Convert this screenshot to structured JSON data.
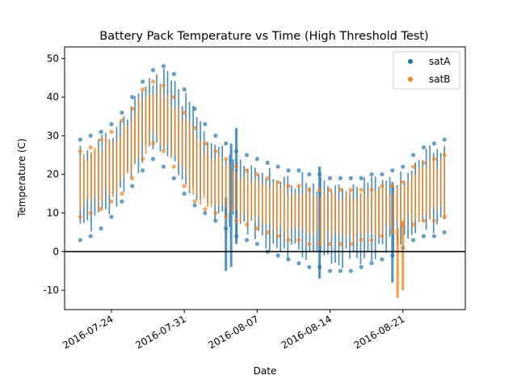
{
  "chart_data": {
    "type": "scatter",
    "title": "Battery Pack Temperature vs Time (High Threshold Test)",
    "xlabel": "Date",
    "ylabel": "Temperature (C)",
    "x_range": [
      "2016-07-19T12:00",
      "2016-08-27T00:00"
    ],
    "ylim": [
      -15,
      53
    ],
    "x_ticks": [
      "2016-07-24",
      "2016-07-31",
      "2016-08-07",
      "2016-08-14",
      "2016-08-21"
    ],
    "y_ticks": [
      -10,
      0,
      10,
      20,
      30,
      40,
      50
    ],
    "reference_line": {
      "y": 0,
      "color": "#000000"
    },
    "grid": false,
    "legend_position": "top-right",
    "series": [
      {
        "name": "satA",
        "color": "#1f77b4",
        "envelope": {
          "dates": [
            "2016-07-21",
            "2016-07-22",
            "2016-07-23",
            "2016-07-24",
            "2016-07-25",
            "2016-07-26",
            "2016-07-27",
            "2016-07-28",
            "2016-07-29",
            "2016-07-30",
            "2016-07-31",
            "2016-08-01",
            "2016-08-02",
            "2016-08-03",
            "2016-08-04",
            "2016-08-05",
            "2016-08-06",
            "2016-08-07",
            "2016-08-08",
            "2016-08-09",
            "2016-08-10",
            "2016-08-11",
            "2016-08-12",
            "2016-08-13",
            "2016-08-14",
            "2016-08-15",
            "2016-08-16",
            "2016-08-17",
            "2016-08-18",
            "2016-08-19",
            "2016-08-20",
            "2016-08-21",
            "2016-08-22",
            "2016-08-23",
            "2016-08-24",
            "2016-08-25"
          ],
          "low": [
            3,
            4,
            6,
            9,
            13,
            17,
            21,
            24,
            22,
            19,
            15,
            12,
            10,
            8,
            6,
            4,
            3,
            2,
            0,
            -1,
            -2,
            -3,
            -4,
            -4,
            -5,
            -5,
            -5,
            -4,
            -3,
            -2,
            -1,
            1,
            3,
            4,
            4,
            5
          ],
          "high": [
            29,
            30,
            31,
            33,
            36,
            40,
            44,
            47,
            48,
            46,
            42,
            37,
            33,
            30,
            28,
            26,
            25,
            24,
            23,
            22,
            21,
            21,
            20,
            20,
            19,
            19,
            19,
            19,
            20,
            20,
            21,
            22,
            25,
            27,
            28,
            29
          ]
        },
        "spikes": [
          {
            "date": "2016-08-04",
            "low": -5,
            "high": 14
          },
          {
            "date": "2016-08-04T12:00",
            "low": -4,
            "high": 28
          },
          {
            "date": "2016-08-05",
            "low": 2,
            "high": 32
          },
          {
            "date": "2016-08-13",
            "low": -7,
            "high": 22
          },
          {
            "date": "2016-08-20",
            "low": -8,
            "high": 18
          }
        ]
      },
      {
        "name": "satB",
        "color": "#ff7f0e",
        "envelope": {
          "dates": [
            "2016-07-21",
            "2016-07-22",
            "2016-07-23",
            "2016-07-24",
            "2016-07-25",
            "2016-07-26",
            "2016-07-27",
            "2016-07-28",
            "2016-07-29",
            "2016-07-30",
            "2016-07-31",
            "2016-08-01",
            "2016-08-02",
            "2016-08-03",
            "2016-08-04",
            "2016-08-05",
            "2016-08-06",
            "2016-08-07",
            "2016-08-08",
            "2016-08-09",
            "2016-08-10",
            "2016-08-11",
            "2016-08-12",
            "2016-08-13",
            "2016-08-14",
            "2016-08-15",
            "2016-08-16",
            "2016-08-17",
            "2016-08-18",
            "2016-08-19",
            "2016-08-20",
            "2016-08-21",
            "2016-08-22",
            "2016-08-23",
            "2016-08-24",
            "2016-08-25"
          ],
          "low": [
            9,
            10,
            11,
            13,
            15,
            19,
            24,
            28,
            26,
            22,
            17,
            13,
            11,
            10,
            9,
            8,
            7,
            6,
            5,
            4,
            3,
            3,
            2,
            2,
            2,
            2,
            2,
            3,
            3,
            4,
            5,
            7,
            7,
            8,
            8,
            9
          ],
          "high": [
            26,
            27,
            29,
            31,
            34,
            37,
            42,
            44,
            43,
            40,
            36,
            32,
            28,
            26,
            24,
            22,
            21,
            20,
            19,
            18,
            17,
            17,
            16,
            16,
            16,
            16,
            16,
            16,
            16,
            17,
            17,
            18,
            22,
            23,
            24,
            25
          ]
        },
        "spikes": [
          {
            "date": "2016-08-20T12:00",
            "low": -12,
            "high": 6
          },
          {
            "date": "2016-08-21",
            "low": -10,
            "high": 8
          }
        ]
      }
    ]
  }
}
